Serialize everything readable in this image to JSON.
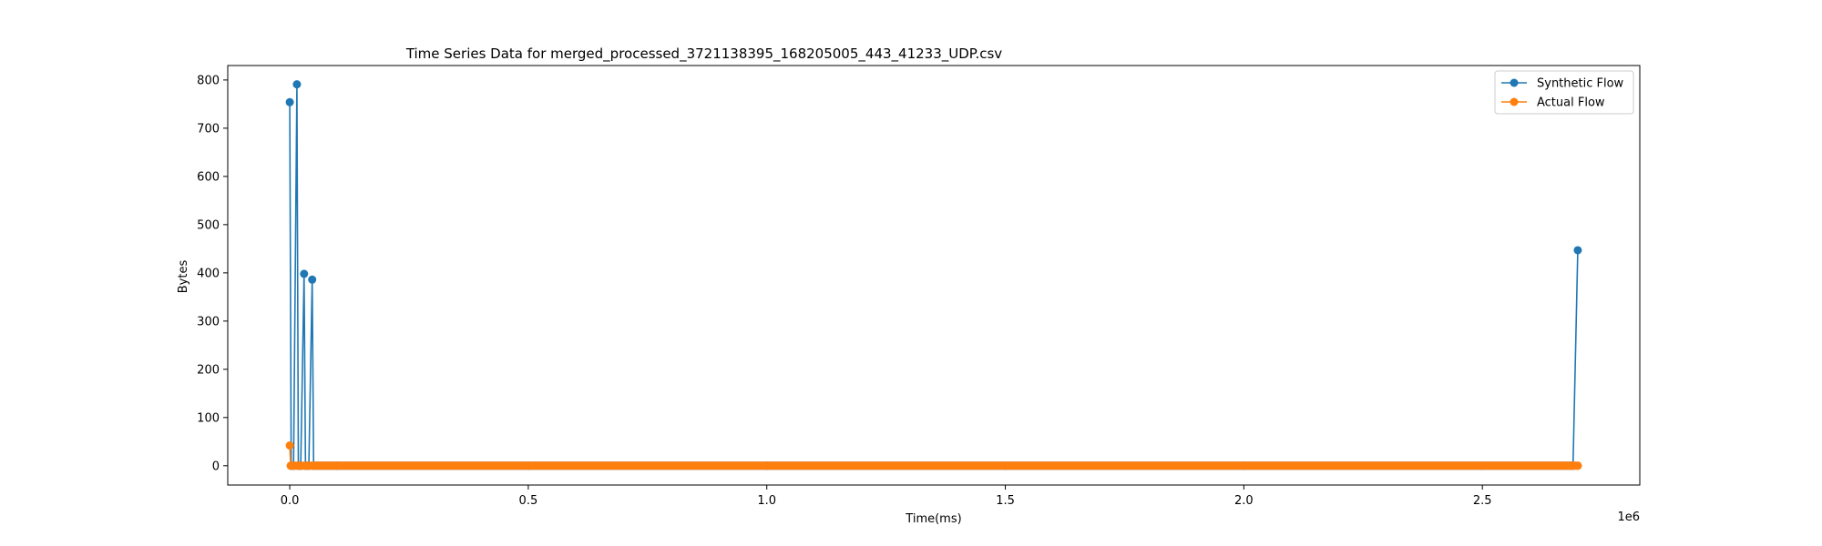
{
  "chart_data": {
    "type": "line",
    "title": "Time Series Data for merged_processed_3721138395_168205005_443_41233_UDP.csv",
    "xlabel": "Time(ms)",
    "ylabel": "Bytes",
    "x_offset_text": "1e6",
    "xlim": [
      -130000,
      2830000
    ],
    "ylim": [
      -40,
      830
    ],
    "x_ticks": [
      0,
      0.5,
      1.0,
      1.5,
      2.0,
      2.5
    ],
    "x_tick_labels": [
      "0.0",
      "0.5",
      "1.0",
      "1.5",
      "2.0",
      "2.5"
    ],
    "x_tick_scale": 1000000,
    "y_ticks": [
      0,
      100,
      200,
      300,
      400,
      500,
      600,
      700,
      800
    ],
    "y_tick_labels": [
      "0",
      "100",
      "200",
      "300",
      "400",
      "500",
      "600",
      "700",
      "800"
    ],
    "grid": false,
    "legend_position": "top-right",
    "series": [
      {
        "name": "Synthetic Flow",
        "color": "#1f77b4",
        "points": [
          [
            0,
            754
          ],
          [
            3000,
            0
          ],
          [
            8000,
            0
          ],
          [
            15000,
            791
          ],
          [
            18000,
            0
          ],
          [
            23000,
            0
          ],
          [
            30000,
            398
          ],
          [
            33000,
            0
          ],
          [
            40000,
            0
          ],
          [
            47000,
            386
          ],
          [
            50000,
            0
          ],
          [
            100000,
            0
          ],
          [
            500000,
            0
          ],
          [
            1000000,
            0
          ],
          [
            1500000,
            0
          ],
          [
            2000000,
            0
          ],
          [
            2500000,
            0
          ],
          [
            2690000,
            0
          ],
          [
            2700000,
            447
          ]
        ]
      },
      {
        "name": "Actual Flow",
        "color": "#ff7f0e",
        "points": [
          [
            0,
            42
          ],
          [
            2000,
            0
          ],
          [
            2700000,
            0
          ]
        ]
      }
    ]
  }
}
